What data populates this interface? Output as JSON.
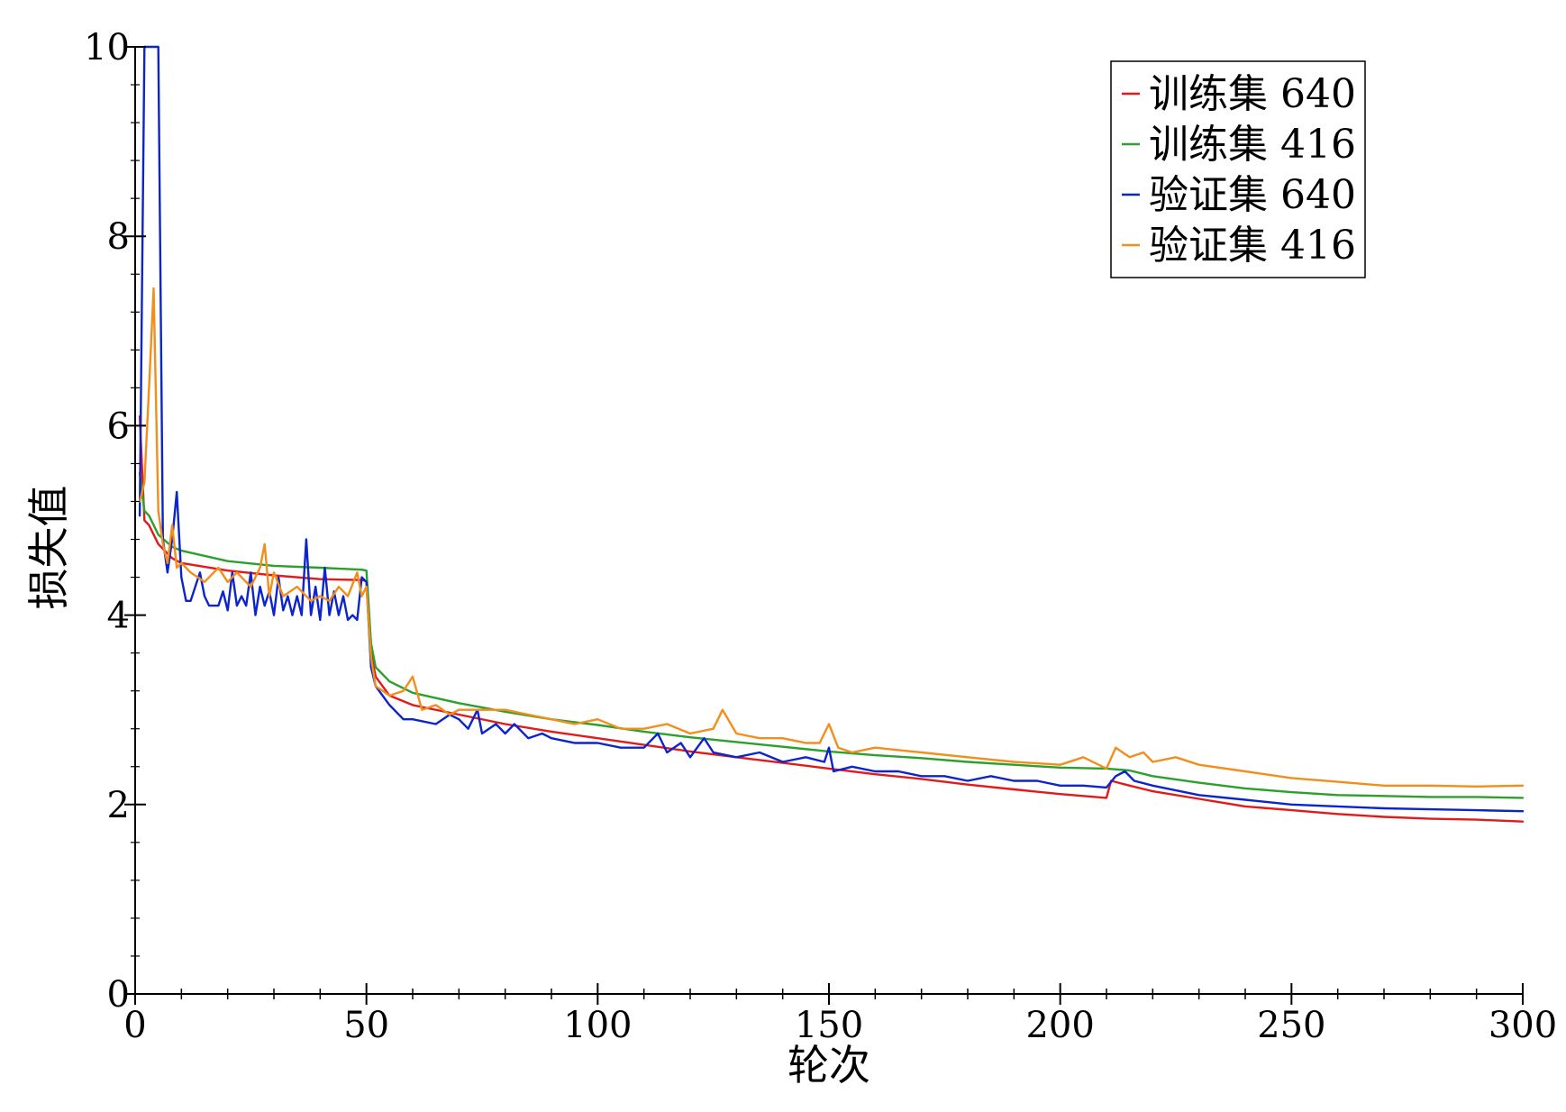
{
  "chart_data": {
    "type": "line",
    "xlabel": "轮次",
    "ylabel": "损失值",
    "xlim": [
      0,
      300
    ],
    "ylim": [
      0,
      10
    ],
    "x_ticks": [
      0,
      50,
      100,
      150,
      200,
      250,
      300
    ],
    "y_ticks": [
      0,
      2,
      4,
      6,
      8,
      10
    ],
    "grid": false,
    "legend_position": "top-right",
    "series": [
      {
        "name": "训练集 640",
        "color": "#e31a1c",
        "points": [
          [
            1,
            6.1
          ],
          [
            2,
            5.0
          ],
          [
            3,
            4.95
          ],
          [
            5,
            4.75
          ],
          [
            8,
            4.6
          ],
          [
            10,
            4.55
          ],
          [
            20,
            4.47
          ],
          [
            30,
            4.42
          ],
          [
            40,
            4.38
          ],
          [
            49,
            4.37
          ],
          [
            50,
            4.36
          ],
          [
            51,
            3.6
          ],
          [
            52,
            3.35
          ],
          [
            55,
            3.15
          ],
          [
            60,
            3.05
          ],
          [
            70,
            2.95
          ],
          [
            80,
            2.85
          ],
          [
            90,
            2.77
          ],
          [
            100,
            2.7
          ],
          [
            110,
            2.63
          ],
          [
            120,
            2.56
          ],
          [
            130,
            2.5
          ],
          [
            140,
            2.44
          ],
          [
            150,
            2.38
          ],
          [
            160,
            2.32
          ],
          [
            170,
            2.27
          ],
          [
            180,
            2.21
          ],
          [
            190,
            2.16
          ],
          [
            200,
            2.11
          ],
          [
            210,
            2.07
          ],
          [
            211,
            2.25
          ],
          [
            215,
            2.2
          ],
          [
            220,
            2.14
          ],
          [
            230,
            2.06
          ],
          [
            240,
            1.98
          ],
          [
            250,
            1.94
          ],
          [
            260,
            1.9
          ],
          [
            270,
            1.87
          ],
          [
            280,
            1.85
          ],
          [
            290,
            1.84
          ],
          [
            300,
            1.82
          ]
        ]
      },
      {
        "name": "训练集 416",
        "color": "#2ca02c",
        "points": [
          [
            1,
            5.5
          ],
          [
            2,
            5.1
          ],
          [
            3,
            5.05
          ],
          [
            5,
            4.85
          ],
          [
            8,
            4.72
          ],
          [
            10,
            4.68
          ],
          [
            20,
            4.57
          ],
          [
            30,
            4.52
          ],
          [
            40,
            4.5
          ],
          [
            49,
            4.48
          ],
          [
            50,
            4.47
          ],
          [
            51,
            3.7
          ],
          [
            52,
            3.45
          ],
          [
            55,
            3.3
          ],
          [
            60,
            3.18
          ],
          [
            70,
            3.07
          ],
          [
            80,
            2.98
          ],
          [
            90,
            2.9
          ],
          [
            100,
            2.84
          ],
          [
            110,
            2.77
          ],
          [
            120,
            2.71
          ],
          [
            130,
            2.66
          ],
          [
            140,
            2.61
          ],
          [
            150,
            2.56
          ],
          [
            160,
            2.52
          ],
          [
            170,
            2.49
          ],
          [
            180,
            2.45
          ],
          [
            190,
            2.42
          ],
          [
            200,
            2.39
          ],
          [
            210,
            2.38
          ],
          [
            215,
            2.36
          ],
          [
            220,
            2.3
          ],
          [
            230,
            2.23
          ],
          [
            240,
            2.17
          ],
          [
            250,
            2.13
          ],
          [
            260,
            2.1
          ],
          [
            270,
            2.09
          ],
          [
            280,
            2.08
          ],
          [
            290,
            2.08
          ],
          [
            300,
            2.07
          ]
        ]
      },
      {
        "name": "验证集 640",
        "color": "#0b24cc",
        "points": [
          [
            1,
            5.05
          ],
          [
            2,
            10
          ],
          [
            3,
            10
          ],
          [
            4,
            10
          ],
          [
            5,
            10
          ],
          [
            6,
            4.8
          ],
          [
            7,
            4.45
          ],
          [
            8,
            4.8
          ],
          [
            9,
            5.3
          ],
          [
            10,
            4.4
          ],
          [
            11,
            4.15
          ],
          [
            12,
            4.15
          ],
          [
            14,
            4.45
          ],
          [
            15,
            4.2
          ],
          [
            16,
            4.1
          ],
          [
            18,
            4.1
          ],
          [
            19,
            4.25
          ],
          [
            20,
            4.05
          ],
          [
            21,
            4.45
          ],
          [
            22,
            4.1
          ],
          [
            23,
            4.2
          ],
          [
            24,
            4.1
          ],
          [
            25,
            4.45
          ],
          [
            26,
            4.0
          ],
          [
            27,
            4.3
          ],
          [
            28,
            4.1
          ],
          [
            29,
            4.25
          ],
          [
            30,
            4.0
          ],
          [
            31,
            4.4
          ],
          [
            32,
            4.05
          ],
          [
            33,
            4.2
          ],
          [
            34,
            4.0
          ],
          [
            35,
            4.2
          ],
          [
            36,
            4.0
          ],
          [
            37,
            4.8
          ],
          [
            38,
            4.0
          ],
          [
            39,
            4.3
          ],
          [
            40,
            3.95
          ],
          [
            41,
            4.5
          ],
          [
            42,
            4.0
          ],
          [
            43,
            4.25
          ],
          [
            44,
            4.0
          ],
          [
            45,
            4.2
          ],
          [
            46,
            3.95
          ],
          [
            47,
            4.0
          ],
          [
            48,
            3.95
          ],
          [
            49,
            4.4
          ],
          [
            50,
            4.35
          ],
          [
            51,
            3.45
          ],
          [
            52,
            3.25
          ],
          [
            55,
            3.05
          ],
          [
            58,
            2.9
          ],
          [
            60,
            2.9
          ],
          [
            65,
            2.85
          ],
          [
            68,
            2.95
          ],
          [
            70,
            2.9
          ],
          [
            72,
            2.8
          ],
          [
            74,
            3.0
          ],
          [
            75,
            2.75
          ],
          [
            78,
            2.85
          ],
          [
            80,
            2.75
          ],
          [
            82,
            2.85
          ],
          [
            85,
            2.7
          ],
          [
            88,
            2.75
          ],
          [
            90,
            2.7
          ],
          [
            95,
            2.65
          ],
          [
            100,
            2.65
          ],
          [
            105,
            2.6
          ],
          [
            110,
            2.6
          ],
          [
            113,
            2.75
          ],
          [
            115,
            2.55
          ],
          [
            118,
            2.65
          ],
          [
            120,
            2.5
          ],
          [
            123,
            2.7
          ],
          [
            125,
            2.55
          ],
          [
            130,
            2.5
          ],
          [
            135,
            2.55
          ],
          [
            140,
            2.45
          ],
          [
            145,
            2.5
          ],
          [
            149,
            2.45
          ],
          [
            150,
            2.6
          ],
          [
            151,
            2.35
          ],
          [
            155,
            2.4
          ],
          [
            160,
            2.35
          ],
          [
            165,
            2.35
          ],
          [
            170,
            2.3
          ],
          [
            175,
            2.3
          ],
          [
            180,
            2.25
          ],
          [
            185,
            2.3
          ],
          [
            190,
            2.25
          ],
          [
            195,
            2.25
          ],
          [
            200,
            2.2
          ],
          [
            205,
            2.2
          ],
          [
            210,
            2.18
          ],
          [
            212,
            2.3
          ],
          [
            214,
            2.35
          ],
          [
            216,
            2.25
          ],
          [
            220,
            2.2
          ],
          [
            230,
            2.1
          ],
          [
            240,
            2.05
          ],
          [
            250,
            2.0
          ],
          [
            260,
            1.98
          ],
          [
            270,
            1.96
          ],
          [
            280,
            1.95
          ],
          [
            290,
            1.94
          ],
          [
            300,
            1.93
          ]
        ]
      },
      {
        "name": "验证集 416",
        "color": "#f28e1c",
        "points": [
          [
            1,
            5.2
          ],
          [
            2,
            5.4
          ],
          [
            3,
            6.4
          ],
          [
            4,
            7.45
          ],
          [
            5,
            5.1
          ],
          [
            6,
            4.75
          ],
          [
            7,
            4.55
          ],
          [
            8,
            4.95
          ],
          [
            9,
            4.5
          ],
          [
            10,
            4.55
          ],
          [
            12,
            4.45
          ],
          [
            15,
            4.35
          ],
          [
            18,
            4.5
          ],
          [
            20,
            4.35
          ],
          [
            22,
            4.45
          ],
          [
            25,
            4.3
          ],
          [
            27,
            4.5
          ],
          [
            28,
            4.75
          ],
          [
            29,
            4.2
          ],
          [
            30,
            4.45
          ],
          [
            32,
            4.2
          ],
          [
            35,
            4.3
          ],
          [
            38,
            4.15
          ],
          [
            40,
            4.2
          ],
          [
            42,
            4.15
          ],
          [
            44,
            4.3
          ],
          [
            46,
            4.2
          ],
          [
            48,
            4.45
          ],
          [
            49,
            4.2
          ],
          [
            50,
            4.3
          ],
          [
            51,
            3.55
          ],
          [
            52,
            3.25
          ],
          [
            55,
            3.15
          ],
          [
            58,
            3.2
          ],
          [
            60,
            3.35
          ],
          [
            62,
            3.0
          ],
          [
            65,
            3.05
          ],
          [
            68,
            2.95
          ],
          [
            70,
            3.0
          ],
          [
            75,
            3.0
          ],
          [
            80,
            3.0
          ],
          [
            85,
            2.95
          ],
          [
            90,
            2.9
          ],
          [
            95,
            2.85
          ],
          [
            100,
            2.9
          ],
          [
            105,
            2.8
          ],
          [
            110,
            2.8
          ],
          [
            115,
            2.85
          ],
          [
            120,
            2.75
          ],
          [
            125,
            2.8
          ],
          [
            127,
            3.0
          ],
          [
            130,
            2.75
          ],
          [
            135,
            2.7
          ],
          [
            140,
            2.7
          ],
          [
            145,
            2.65
          ],
          [
            148,
            2.65
          ],
          [
            150,
            2.85
          ],
          [
            152,
            2.6
          ],
          [
            155,
            2.55
          ],
          [
            160,
            2.6
          ],
          [
            170,
            2.55
          ],
          [
            180,
            2.5
          ],
          [
            190,
            2.45
          ],
          [
            200,
            2.42
          ],
          [
            205,
            2.5
          ],
          [
            210,
            2.38
          ],
          [
            212,
            2.6
          ],
          [
            215,
            2.5
          ],
          [
            218,
            2.55
          ],
          [
            220,
            2.45
          ],
          [
            225,
            2.5
          ],
          [
            230,
            2.42
          ],
          [
            240,
            2.35
          ],
          [
            250,
            2.28
          ],
          [
            260,
            2.24
          ],
          [
            270,
            2.2
          ],
          [
            280,
            2.2
          ],
          [
            290,
            2.19
          ],
          [
            300,
            2.2
          ]
        ]
      }
    ]
  }
}
